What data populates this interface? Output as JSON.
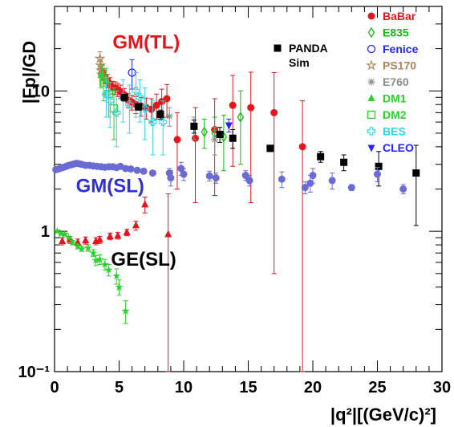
{
  "chart_data": {
    "type": "scatter",
    "xlabel": "|q²|[(GeV/c)²]",
    "ylabel": "|Fp|/GD",
    "xlim": [
      0,
      30
    ],
    "ylim": [
      0.1,
      40
    ],
    "yscale": "log",
    "grid": false,
    "legend_position": "top-right",
    "x_ticks": [
      0,
      5,
      10,
      15,
      20,
      25,
      30
    ],
    "y_ticks": [
      {
        "value": 10,
        "label": "10"
      },
      {
        "value": 1,
        "label": "1"
      },
      {
        "value": 0.1,
        "label": "10⁻¹"
      }
    ],
    "annotations": [
      {
        "text": "GM(TL)",
        "x": 7.1,
        "y": 20,
        "color": "#e8141c"
      },
      {
        "text": "GM(SL)",
        "x": 4.3,
        "y": 1.9,
        "color": "#2f2fd9"
      },
      {
        "text": "GE(SL)",
        "x": 6.9,
        "y": 0.57,
        "color": "#000000"
      }
    ],
    "series": [
      {
        "name": "BaBar",
        "marker": "circle",
        "color": "#e8141c",
        "filled": true,
        "show_in_legend": true,
        "points": [
          {
            "x": 3.7,
            "y": 13.5,
            "e": 1.6
          },
          {
            "x": 3.9,
            "y": 12.6,
            "e": 1.4
          },
          {
            "x": 4.1,
            "y": 11.8,
            "e": 1.3
          },
          {
            "x": 4.3,
            "y": 11.2,
            "e": 1.2
          },
          {
            "x": 4.5,
            "y": 10.6,
            "e": 1.1
          },
          {
            "x": 4.7,
            "y": 10.5,
            "e": 1.1
          },
          {
            "x": 4.9,
            "y": 10.2,
            "e": 1.1
          },
          {
            "x": 5.1,
            "y": 9.9,
            "e": 1.1
          },
          {
            "x": 5.4,
            "y": 9.4,
            "e": 1.0
          },
          {
            "x": 5.7,
            "y": 8.6,
            "e": 1.0
          },
          {
            "x": 6.0,
            "y": 8.3,
            "e": 1.0
          },
          {
            "x": 6.3,
            "y": 8.0,
            "e": 1.1
          },
          {
            "x": 6.7,
            "y": 7.8,
            "e": 1.2
          },
          {
            "x": 7.1,
            "y": 7.6,
            "e": 1.3
          },
          {
            "x": 7.5,
            "y": 7.4,
            "e": 1.4
          },
          {
            "x": 7.9,
            "y": 7.9,
            "e": 1.6
          },
          {
            "x": 8.3,
            "y": 8.4,
            "e": 1.9
          },
          {
            "x": 8.7,
            "y": 8.8,
            "e": 2.3
          },
          {
            "x": 9.5,
            "y": 4.5,
            "e": 2.5
          },
          {
            "x": 10.9,
            "y": 4.6,
            "e": 3.0
          },
          {
            "x": 12.4,
            "y": 5.3,
            "e": 3.5
          },
          {
            "x": 13.8,
            "y": 7.9,
            "e": 5.0
          },
          {
            "x": 15.2,
            "y": 7.6,
            "e": 6.0
          },
          {
            "x": 17.0,
            "y": 7.0,
            "e": 6.5
          },
          {
            "x": 19.2,
            "y": 4.0,
            "e": 4.5
          }
        ]
      },
      {
        "name": "E835",
        "marker": "diamond-open",
        "color": "#17b817",
        "filled": false,
        "show_in_legend": true,
        "points": [
          {
            "x": 11.6,
            "y": 5.1,
            "e": 1.2
          },
          {
            "x": 12.4,
            "y": 5.0,
            "e": 1.5
          },
          {
            "x": 13.1,
            "y": 4.7,
            "e": 2.0
          },
          {
            "x": 14.4,
            "y": 6.5,
            "e": 3.5
          }
        ]
      },
      {
        "name": "Fenice",
        "marker": "circle-open",
        "color": "#2424ff",
        "filled": false,
        "show_in_legend": true,
        "points": [
          {
            "x": 6.0,
            "y": 13.5,
            "e": 3.2
          }
        ]
      },
      {
        "name": "PS170",
        "marker": "star-open",
        "color": "#b0825a",
        "filled": false,
        "show_in_legend": true,
        "points": [
          {
            "x": 3.52,
            "y": 17.0,
            "e": 2.0
          },
          {
            "x": 3.56,
            "y": 15.2,
            "e": 1.6
          },
          {
            "x": 3.6,
            "y": 14.0,
            "e": 1.4
          },
          {
            "x": 3.65,
            "y": 13.1,
            "e": 1.3
          },
          {
            "x": 3.75,
            "y": 12.6,
            "e": 1.2
          }
        ]
      },
      {
        "name": "E760",
        "marker": "asterisk",
        "color": "#8c8c8c",
        "filled": false,
        "show_in_legend": true,
        "points": [
          {
            "x": 8.9,
            "y": 6.6,
            "e": 1.0
          },
          {
            "x": 10.8,
            "y": 5.5,
            "e": 1.0
          },
          {
            "x": 12.4,
            "y": 4.5,
            "e": 1.0
          }
        ]
      },
      {
        "name": "DM1",
        "marker": "triangle-up",
        "color": "#2bd12b",
        "filled": true,
        "show_in_legend": true,
        "points": [
          {
            "x": 3.6,
            "y": 13.0,
            "e": 2.5
          },
          {
            "x": 4.0,
            "y": 12.0,
            "e": 2.5
          }
        ]
      },
      {
        "name": "DM2",
        "marker": "square-open",
        "color": "#2bd12b",
        "filled": false,
        "show_in_legend": true,
        "points": [
          {
            "x": 3.8,
            "y": 11.5,
            "e": 3.0
          },
          {
            "x": 4.2,
            "y": 9.5,
            "e": 3.0
          },
          {
            "x": 4.6,
            "y": 7.5,
            "e": 3.0
          }
        ]
      },
      {
        "name": "BES",
        "marker": "cross-open",
        "color": "#33d6e0",
        "filled": false,
        "show_in_legend": true,
        "points": [
          {
            "x": 4.0,
            "y": 9.5,
            "e": 3.0
          },
          {
            "x": 4.3,
            "y": 8.5,
            "e": 3.0
          },
          {
            "x": 4.8,
            "y": 7.0,
            "e": 3.0
          },
          {
            "x": 5.3,
            "y": 9.0,
            "e": 3.0
          },
          {
            "x": 5.8,
            "y": 8.0,
            "e": 3.0
          },
          {
            "x": 6.3,
            "y": 10.0,
            "e": 3.5
          },
          {
            "x": 6.6,
            "y": 9.0,
            "e": 3.0
          },
          {
            "x": 7.0,
            "y": 7.5,
            "e": 3.0
          },
          {
            "x": 7.6,
            "y": 6.0,
            "e": 2.5
          },
          {
            "x": 8.4,
            "y": 6.0,
            "e": 2.5
          }
        ]
      },
      {
        "name": "CLEO",
        "marker": "triangle-down",
        "color": "#2424ff",
        "filled": true,
        "show_in_legend": true,
        "points": [
          {
            "x": 13.5,
            "y": 5.7,
            "e": 0.6
          }
        ]
      },
      {
        "name": "PANDA Sim",
        "marker": "square",
        "color": "#000000",
        "filled": true,
        "show_in_legend": true,
        "points": [
          {
            "x": 5.4,
            "y": 9.0,
            "e": 0.4
          },
          {
            "x": 6.5,
            "y": 7.7,
            "e": 0.4
          },
          {
            "x": 8.2,
            "y": 6.8,
            "e": 0.5
          },
          {
            "x": 10.8,
            "y": 5.6,
            "e": 0.6
          },
          {
            "x": 12.8,
            "y": 4.9,
            "e": 0.6
          },
          {
            "x": 13.8,
            "y": 4.6,
            "e": 0.7
          },
          {
            "x": 16.7,
            "y": 3.9,
            "e": 0.2
          },
          {
            "x": 20.6,
            "y": 3.4,
            "e": 0.3
          },
          {
            "x": 22.4,
            "y": 3.1,
            "e": 0.4
          },
          {
            "x": 25.1,
            "y": 2.9,
            "e": 0.8
          },
          {
            "x": 28.0,
            "y": 2.6,
            "e": 1.5
          }
        ]
      },
      {
        "name": "GM(SL) data",
        "marker": "circle",
        "color": "#6b6bd6",
        "filled": true,
        "show_in_legend": false,
        "points": [
          {
            "x": 0.1,
            "y": 2.75,
            "e": 0.08
          },
          {
            "x": 0.3,
            "y": 2.78,
            "e": 0.08
          },
          {
            "x": 0.5,
            "y": 2.82,
            "e": 0.08
          },
          {
            "x": 0.7,
            "y": 2.86,
            "e": 0.08
          },
          {
            "x": 0.9,
            "y": 2.9,
            "e": 0.08
          },
          {
            "x": 1.1,
            "y": 2.95,
            "e": 0.08
          },
          {
            "x": 1.3,
            "y": 2.98,
            "e": 0.08
          },
          {
            "x": 1.5,
            "y": 3.02,
            "e": 0.08
          },
          {
            "x": 1.7,
            "y": 3.05,
            "e": 0.08
          },
          {
            "x": 1.9,
            "y": 3.03,
            "e": 0.08
          },
          {
            "x": 2.1,
            "y": 3.0,
            "e": 0.08
          },
          {
            "x": 2.4,
            "y": 2.95,
            "e": 0.08
          },
          {
            "x": 2.7,
            "y": 2.95,
            "e": 0.08
          },
          {
            "x": 3.0,
            "y": 2.92,
            "e": 0.08
          },
          {
            "x": 3.3,
            "y": 2.9,
            "e": 0.08
          },
          {
            "x": 3.6,
            "y": 2.88,
            "e": 0.08
          },
          {
            "x": 3.9,
            "y": 2.86,
            "e": 0.08
          },
          {
            "x": 4.2,
            "y": 2.88,
            "e": 0.08
          },
          {
            "x": 4.5,
            "y": 2.88,
            "e": 0.08
          },
          {
            "x": 4.8,
            "y": 2.84,
            "e": 0.08
          },
          {
            "x": 5.1,
            "y": 2.9,
            "e": 0.08
          },
          {
            "x": 5.5,
            "y": 2.8,
            "e": 0.08
          },
          {
            "x": 5.9,
            "y": 2.78,
            "e": 0.08
          },
          {
            "x": 6.4,
            "y": 2.72,
            "e": 0.1
          },
          {
            "x": 6.9,
            "y": 2.68,
            "e": 0.1
          },
          {
            "x": 7.6,
            "y": 2.6,
            "e": 0.1
          },
          {
            "x": 8.9,
            "y": 2.6,
            "e": 0.2
          },
          {
            "x": 9.0,
            "y": 2.4,
            "e": 0.3
          },
          {
            "x": 9.8,
            "y": 2.8,
            "e": 0.3
          },
          {
            "x": 10.0,
            "y": 2.55,
            "e": 0.25
          },
          {
            "x": 12.0,
            "y": 2.48,
            "e": 0.2
          },
          {
            "x": 12.5,
            "y": 2.4,
            "e": 0.2
          },
          {
            "x": 14.8,
            "y": 2.5,
            "e": 0.2
          },
          {
            "x": 15.1,
            "y": 2.3,
            "e": 0.2
          },
          {
            "x": 17.6,
            "y": 2.35,
            "e": 0.3
          },
          {
            "x": 19.4,
            "y": 2.05,
            "e": 0.2
          },
          {
            "x": 19.8,
            "y": 2.2,
            "e": 0.3
          },
          {
            "x": 20.0,
            "y": 2.5,
            "e": 0.3
          },
          {
            "x": 21.5,
            "y": 2.3,
            "e": 0.3
          },
          {
            "x": 23.0,
            "y": 2.05,
            "e": 0.1
          },
          {
            "x": 25.0,
            "y": 2.55,
            "e": 0.3
          },
          {
            "x": 27.0,
            "y": 2.0,
            "e": 0.15
          }
        ]
      },
      {
        "name": "GM(TL) DM1 low",
        "marker": "triangle-up",
        "color": "#e8141c",
        "filled": true,
        "show_in_legend": false,
        "points": [
          {
            "x": 0.6,
            "y": 0.85,
            "e": 0.05
          },
          {
            "x": 1.2,
            "y": 0.87,
            "e": 0.05
          },
          {
            "x": 1.8,
            "y": 0.83,
            "e": 0.05
          },
          {
            "x": 2.4,
            "y": 0.86,
            "e": 0.05
          },
          {
            "x": 3.2,
            "y": 0.85,
            "e": 0.05
          },
          {
            "x": 3.5,
            "y": 0.87,
            "e": 0.05
          },
          {
            "x": 4.3,
            "y": 0.92,
            "e": 0.05
          },
          {
            "x": 4.9,
            "y": 0.93,
            "e": 0.05
          },
          {
            "x": 5.6,
            "y": 0.98,
            "e": 0.05
          },
          {
            "x": 6.3,
            "y": 1.1,
            "e": 0.08
          },
          {
            "x": 7.0,
            "y": 1.55,
            "e": 0.2
          },
          {
            "x": 8.8,
            "y": 0.95,
            "e": 0.9
          }
        ]
      },
      {
        "name": "GE(SL) data",
        "marker": "star",
        "color": "#2bd12b",
        "filled": true,
        "show_in_legend": false,
        "points": [
          {
            "x": 0.2,
            "y": 1.0,
            "e": 0.02
          },
          {
            "x": 0.5,
            "y": 0.96,
            "e": 0.02
          },
          {
            "x": 0.8,
            "y": 0.95,
            "e": 0.02
          },
          {
            "x": 1.1,
            "y": 0.9,
            "e": 0.02
          },
          {
            "x": 1.4,
            "y": 0.83,
            "e": 0.03
          },
          {
            "x": 1.8,
            "y": 0.78,
            "e": 0.03
          },
          {
            "x": 2.1,
            "y": 0.75,
            "e": 0.03
          },
          {
            "x": 2.6,
            "y": 0.76,
            "e": 0.04
          },
          {
            "x": 3.0,
            "y": 0.7,
            "e": 0.04
          },
          {
            "x": 3.2,
            "y": 0.62,
            "e": 0.05
          },
          {
            "x": 3.5,
            "y": 0.63,
            "e": 0.05
          },
          {
            "x": 3.9,
            "y": 0.58,
            "e": 0.05
          },
          {
            "x": 4.2,
            "y": 0.53,
            "e": 0.05
          },
          {
            "x": 4.8,
            "y": 0.48,
            "e": 0.06
          },
          {
            "x": 5.0,
            "y": 0.4,
            "e": 0.05
          },
          {
            "x": 5.5,
            "y": 0.27,
            "e": 0.05
          }
        ]
      }
    ]
  }
}
